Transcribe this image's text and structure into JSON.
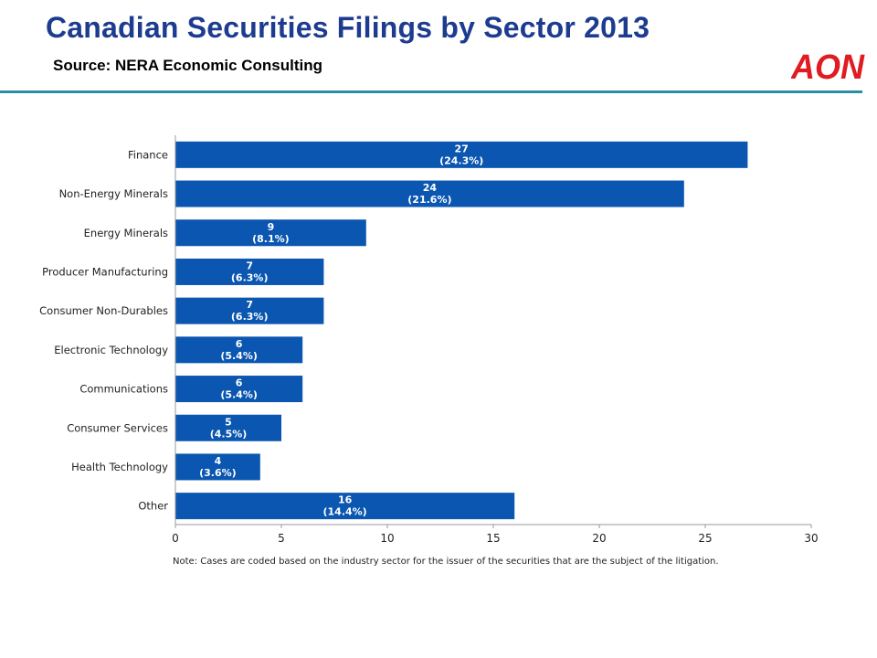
{
  "header": {
    "title": "Canadian Securities Filings by Sector 2013",
    "source": "Source:  NERA Economic Consulting",
    "logo_text": "AON"
  },
  "colors": {
    "title": "#1d3c8f",
    "bar": "#0a56b0",
    "rule": "#2a8ea5",
    "logo": "#e11b22"
  },
  "chart_data": {
    "type": "bar",
    "orientation": "horizontal",
    "categories": [
      "Finance",
      "Non-Energy Minerals",
      "Energy Minerals",
      "Producer Manufacturing",
      "Consumer Non-Durables",
      "Electronic Technology",
      "Communications",
      "Consumer Services",
      "Health Technology",
      "Other"
    ],
    "values": [
      27,
      24,
      9,
      7,
      7,
      6,
      6,
      5,
      4,
      16
    ],
    "data_labels": [
      "(24.3%)",
      "(21.6%)",
      "(8.1%)",
      "(6.3%)",
      "(6.3%)",
      "(5.4%)",
      "(5.4%)",
      "(4.5%)",
      "(3.6%)",
      "(14.4%)"
    ],
    "xlim": [
      0,
      30
    ],
    "xticks": [
      0,
      5,
      10,
      15,
      20,
      25,
      30
    ],
    "grid": false,
    "legend": "none"
  },
  "note": "Note: Cases are coded based on the industry sector for the issuer of the securities that are the subject of the litigation."
}
